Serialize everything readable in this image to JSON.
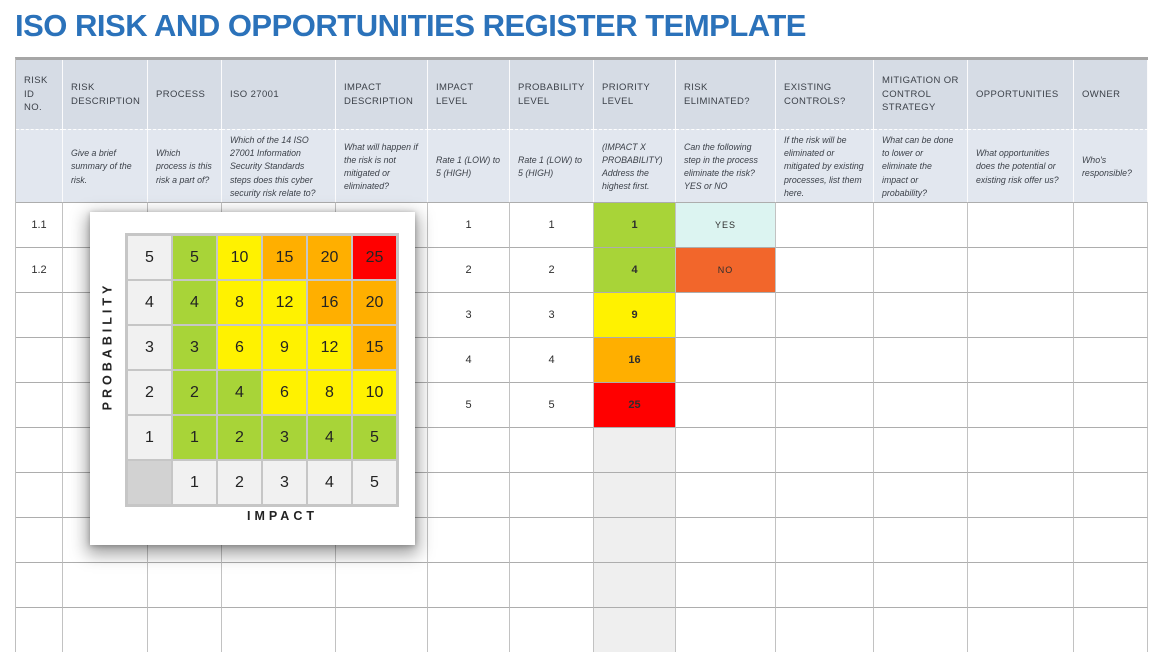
{
  "title": "ISO RISK AND OPPORTUNITIES REGISTER TEMPLATE",
  "colors": {
    "title_blue": "#2B72BA",
    "header_bg": "#D6DCE5",
    "description_bg": "#E2E7EF",
    "priority_empty_bg": "#EFEFEF",
    "matrix_green": "#A8D438",
    "matrix_yellow": "#FFF200",
    "matrix_orange": "#FFAF00",
    "matrix_red": "#FF0000",
    "yes_bg": "#DCF4F1",
    "no_bg": "#F2662B"
  },
  "register": {
    "columns": [
      {
        "key": "risk_id",
        "label": "RISK ID NO.",
        "description": ""
      },
      {
        "key": "risk_description",
        "label": "RISK DESCRIPTION",
        "description": "Give a brief summary of the risk."
      },
      {
        "key": "process",
        "label": "PROCESS",
        "description": "Which process is this risk a part of?"
      },
      {
        "key": "iso_27001",
        "label": "ISO 27001",
        "description": "Which of the 14 ISO 27001 Information Security Standards steps does this cyber security risk relate to?"
      },
      {
        "key": "impact_description",
        "label": "IMPACT DESCRIPTION",
        "description": "What will happen if the risk is not mitigated or eliminated?"
      },
      {
        "key": "impact_level",
        "label": "IMPACT LEVEL",
        "description": "Rate 1 (LOW) to 5 (HIGH)"
      },
      {
        "key": "probability_level",
        "label": "PROBABILITY LEVEL",
        "description": "Rate 1 (LOW) to 5 (HIGH)"
      },
      {
        "key": "priority_level",
        "label": "PRIORITY LEVEL",
        "description": "(IMPACT X PROBABILITY) Address the highest first."
      },
      {
        "key": "risk_eliminated",
        "label": "RISK ELIMINATED?",
        "description": "Can the following step in the process eliminate the risk? YES or NO"
      },
      {
        "key": "existing_controls",
        "label": "EXISTING CONTROLS?",
        "description": "If the risk will be eliminated or mitigated by existing processes, list them here."
      },
      {
        "key": "mitigation_strategy",
        "label": "MITIGATION OR CONTROL STRATEGY",
        "description": "What can be done to lower or eliminate the impact or probability?"
      },
      {
        "key": "opportunities",
        "label": "OPPORTUNITIES",
        "description": "What opportunities does the potential or existing risk offer us?"
      },
      {
        "key": "owner",
        "label": "OWNER",
        "description": "Who's responsible?"
      }
    ],
    "rows": [
      {
        "risk_id": "1.1",
        "impact_level": "1",
        "probability_level": "1",
        "priority_level": "1",
        "priority_color": "matrix_green",
        "risk_eliminated": "YES",
        "eliminated_color": "yes_bg"
      },
      {
        "risk_id": "1.2",
        "impact_level": "2",
        "probability_level": "2",
        "priority_level": "4",
        "priority_color": "matrix_green",
        "risk_eliminated": "NO",
        "eliminated_color": "no_bg"
      },
      {
        "risk_id": "",
        "impact_level": "3",
        "probability_level": "3",
        "priority_level": "9",
        "priority_color": "matrix_yellow",
        "risk_eliminated": "",
        "eliminated_color": ""
      },
      {
        "risk_id": "",
        "impact_level": "4",
        "probability_level": "4",
        "priority_level": "16",
        "priority_color": "matrix_orange",
        "risk_eliminated": "",
        "eliminated_color": ""
      },
      {
        "risk_id": "",
        "impact_level": "5",
        "probability_level": "5",
        "priority_level": "25",
        "priority_color": "matrix_red",
        "risk_eliminated": "",
        "eliminated_color": ""
      },
      {
        "risk_id": "",
        "impact_level": "",
        "probability_level": "",
        "priority_level": "",
        "priority_color": "",
        "risk_eliminated": "",
        "eliminated_color": ""
      },
      {
        "risk_id": "",
        "impact_level": "",
        "probability_level": "",
        "priority_level": "",
        "priority_color": "",
        "risk_eliminated": "",
        "eliminated_color": ""
      },
      {
        "risk_id": "",
        "impact_level": "",
        "probability_level": "",
        "priority_level": "",
        "priority_color": "",
        "risk_eliminated": "",
        "eliminated_color": ""
      },
      {
        "risk_id": "",
        "impact_level": "",
        "probability_level": "",
        "priority_level": "",
        "priority_color": "",
        "risk_eliminated": "",
        "eliminated_color": ""
      },
      {
        "risk_id": "",
        "impact_level": "",
        "probability_level": "",
        "priority_level": "",
        "priority_color": "",
        "risk_eliminated": "",
        "eliminated_color": ""
      }
    ]
  },
  "matrix": {
    "y_label": "PROBABILITY",
    "x_label": "IMPACT",
    "row_headers": [
      "5",
      "4",
      "3",
      "2",
      "1"
    ],
    "col_headers": [
      "1",
      "2",
      "3",
      "4",
      "5"
    ],
    "cells": [
      [
        "5",
        "10",
        "15",
        "20",
        "25"
      ],
      [
        "4",
        "8",
        "12",
        "16",
        "20"
      ],
      [
        "3",
        "6",
        "9",
        "12",
        "15"
      ],
      [
        "2",
        "4",
        "6",
        "8",
        "10"
      ],
      [
        "1",
        "2",
        "3",
        "4",
        "5"
      ]
    ],
    "cell_colors": [
      [
        "green",
        "yellow",
        "orange",
        "orange",
        "red"
      ],
      [
        "green",
        "yellow",
        "yellow",
        "orange",
        "orange"
      ],
      [
        "green",
        "yellow",
        "yellow",
        "yellow",
        "orange"
      ],
      [
        "green",
        "green",
        "yellow",
        "yellow",
        "yellow"
      ],
      [
        "green",
        "green",
        "green",
        "green",
        "green"
      ]
    ]
  }
}
